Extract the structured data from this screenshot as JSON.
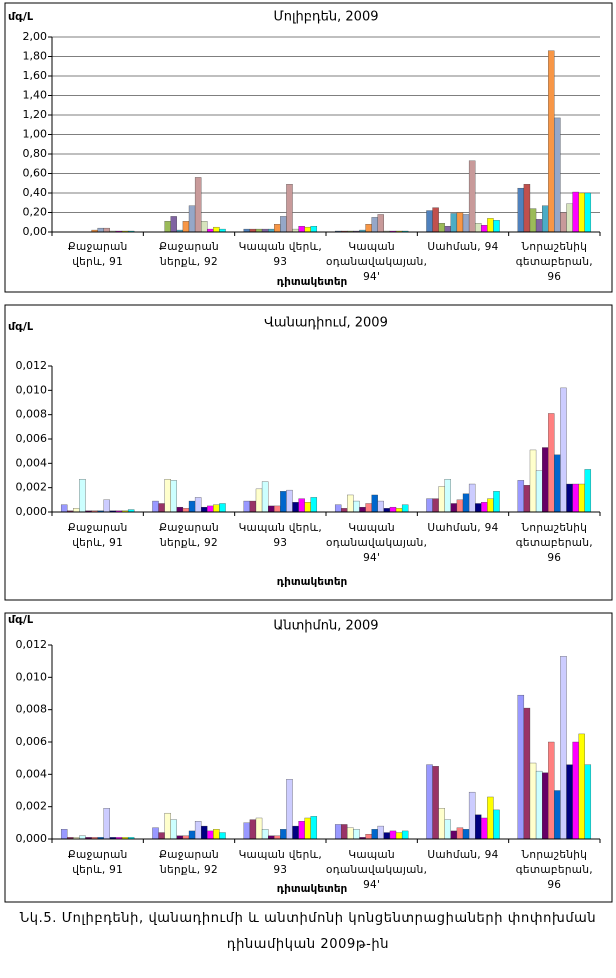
{
  "chart_data": [
    {
      "type": "bar",
      "title": "Մոլիբդեն, 2009",
      "y_label": "մգ/Լ",
      "x_label": "դիտակետեր",
      "categories": [
        "Քաջարան վերև, 91",
        "Քաջարան ներքև, 92",
        "Կապան վերև, 93",
        "Կապան օդանավակայան, 94'",
        "Սահման, 94",
        "Նորաշենիկ գետաբերան, 96"
      ],
      "ylim": [
        0,
        2
      ],
      "yticks": [
        {
          "value": 0,
          "label": "0,00"
        },
        {
          "value": 0.2,
          "label": "0,20"
        },
        {
          "value": 0.4,
          "label": "0,40"
        },
        {
          "value": 0.6,
          "label": "0,60"
        },
        {
          "value": 0.8,
          "label": "0,80"
        },
        {
          "value": 1,
          "label": "1,00"
        },
        {
          "value": 1.2,
          "label": "1,20"
        },
        {
          "value": 1.4,
          "label": "1,40"
        },
        {
          "value": 1.6,
          "label": "1,60"
        },
        {
          "value": 1.8,
          "label": "1,80"
        },
        {
          "value": 2,
          "label": "2,00"
        }
      ],
      "grid": true,
      "series": [
        {
          "color": "#4f81bd",
          "values": [
            0,
            0,
            0.03,
            0.01,
            0.22,
            0.45
          ]
        },
        {
          "color": "#c0504d",
          "values": [
            0,
            0,
            0.03,
            0.01,
            0.25,
            0.49
          ]
        },
        {
          "color": "#9bbb59",
          "values": [
            0,
            0.11,
            0.03,
            0.01,
            0.09,
            0.24
          ]
        },
        {
          "color": "#8064a2",
          "values": [
            0,
            0.16,
            0.03,
            0.01,
            0.06,
            0.13
          ]
        },
        {
          "color": "#4bacc6",
          "values": [
            0,
            0.02,
            0.03,
            0.02,
            0.19,
            0.27
          ]
        },
        {
          "color": "#f79646",
          "values": [
            0.02,
            0.11,
            0.08,
            0.08,
            0.2,
            1.86
          ]
        },
        {
          "color": "#95a7c8",
          "values": [
            0.04,
            0.27,
            0.16,
            0.15,
            0.18,
            1.17
          ]
        },
        {
          "color": "#c89a9a",
          "values": [
            0.04,
            0.56,
            0.49,
            0.18,
            0.73,
            0.2
          ]
        },
        {
          "color": "#d7e4bd",
          "values": [
            0.01,
            0.11,
            0.03,
            0.01,
            0.09,
            0.29
          ]
        },
        {
          "color": "#ff00ff",
          "values": [
            0.01,
            0.03,
            0.06,
            0.01,
            0.07,
            0.41
          ]
        },
        {
          "color": "#ffff00",
          "values": [
            0.01,
            0.05,
            0.05,
            0.01,
            0.14,
            0.4
          ]
        },
        {
          "color": "#00ffff",
          "values": [
            0.01,
            0.03,
            0.06,
            0.01,
            0.12,
            0.4
          ]
        }
      ]
    },
    {
      "type": "bar",
      "title": "Վանադիում, 2009",
      "y_label": "մգ/Լ",
      "x_label": "դիտակետեր",
      "categories": [
        "Քաջարան վերև, 91",
        "Քաջարան ներքև, 92",
        "Կապան վերև, 93",
        "Կապան օդանավակայան, 94'",
        "Սահման, 94",
        "Նորաշենիկ գետաբերան, 96"
      ],
      "ylim": [
        0,
        0.012
      ],
      "yticks": [
        {
          "value": 0,
          "label": "0,000"
        },
        {
          "value": 0.002,
          "label": "0,002"
        },
        {
          "value": 0.004,
          "label": "0,004"
        },
        {
          "value": 0.006,
          "label": "0,006"
        },
        {
          "value": 0.008,
          "label": "0,008"
        },
        {
          "value": 0.01,
          "label": "0,010"
        },
        {
          "value": 0.012,
          "label": "0,012"
        }
      ],
      "grid": false,
      "series": [
        {
          "color": "#9999ff",
          "values": [
            0.0006,
            0.0009,
            0.0009,
            0.0006,
            0.0011,
            0.0026
          ]
        },
        {
          "color": "#993366",
          "values": [
            0.0001,
            0.0007,
            0.0009,
            0.0003,
            0.0011,
            0.0022
          ]
        },
        {
          "color": "#ffffcc",
          "values": [
            0.0003,
            0.0027,
            0.0019,
            0.0014,
            0.0021,
            0.0051
          ]
        },
        {
          "color": "#ccffff",
          "values": [
            0.0027,
            0.0026,
            0.0025,
            0.0009,
            0.0027,
            0.0034
          ]
        },
        {
          "color": "#660066",
          "values": [
            0.0001,
            0.0004,
            0.0005,
            0.0004,
            0.0007,
            0.0053
          ]
        },
        {
          "color": "#ff8080",
          "values": [
            0.0001,
            0.0003,
            0.0005,
            0.0007,
            0.001,
            0.0081
          ]
        },
        {
          "color": "#0066cc",
          "values": [
            0.0001,
            0.0009,
            0.0017,
            0.0014,
            0.0015,
            0.0047
          ]
        },
        {
          "color": "#ccccff",
          "values": [
            0.001,
            0.0012,
            0.0018,
            0.0009,
            0.0023,
            0.0102
          ]
        },
        {
          "color": "#000080",
          "values": [
            0.0001,
            0.0004,
            0.0008,
            0.0003,
            0.0007,
            0.0023
          ]
        },
        {
          "color": "#ff00ff",
          "values": [
            0.0001,
            0.0005,
            0.0011,
            0.0004,
            0.0008,
            0.0023
          ]
        },
        {
          "color": "#ffff00",
          "values": [
            0.0001,
            0.0006,
            0.0008,
            0.0003,
            0.0011,
            0.0023
          ]
        },
        {
          "color": "#00ffff",
          "values": [
            0.0002,
            0.0007,
            0.0012,
            0.0006,
            0.0017,
            0.0035
          ]
        }
      ]
    },
    {
      "type": "bar",
      "title": "Անտիմոն, 2009",
      "y_label": "մգ/Լ",
      "x_label": "դիտակետեր",
      "categories": [
        "Քաջարան վերև, 91",
        "Քաջարան ներքև, 92",
        "Կապան վերև, 93",
        "Կապան օդանավակայան, 94'",
        "Սահման, 94",
        "Նորաշենիկ գետաբերան, 96"
      ],
      "ylim": [
        0,
        0.012
      ],
      "yticks": [
        {
          "value": 0,
          "label": "0,000"
        },
        {
          "value": 0.002,
          "label": "0,002"
        },
        {
          "value": 0.004,
          "label": "0,004"
        },
        {
          "value": 0.006,
          "label": "0,006"
        },
        {
          "value": 0.008,
          "label": "0,008"
        },
        {
          "value": 0.01,
          "label": "0,010"
        },
        {
          "value": 0.012,
          "label": "0,012"
        }
      ],
      "grid": false,
      "series": [
        {
          "color": "#9999ff",
          "values": [
            0.0006,
            0.0007,
            0.001,
            0.0009,
            0.0046,
            0.0089
          ]
        },
        {
          "color": "#993366",
          "values": [
            0.0001,
            0.0004,
            0.0012,
            0.0009,
            0.0045,
            0.0081
          ]
        },
        {
          "color": "#ffffcc",
          "values": [
            0.0001,
            0.0016,
            0.0013,
            0.0007,
            0.0019,
            0.0047
          ]
        },
        {
          "color": "#ccffff",
          "values": [
            0.0002,
            0.0012,
            0.0006,
            0.0006,
            0.0012,
            0.0042
          ]
        },
        {
          "color": "#660066",
          "values": [
            0.0001,
            0.0002,
            0.0002,
            0.0001,
            0.0005,
            0.0041
          ]
        },
        {
          "color": "#ff8080",
          "values": [
            0.0001,
            0.0002,
            0.0002,
            0.0003,
            0.0007,
            0.006
          ]
        },
        {
          "color": "#0066cc",
          "values": [
            0.0001,
            0.0005,
            0.0006,
            0.0006,
            0.0006,
            0.003
          ]
        },
        {
          "color": "#ccccff",
          "values": [
            0.0019,
            0.0011,
            0.0037,
            0.0008,
            0.0029,
            0.0113
          ]
        },
        {
          "color": "#000080",
          "values": [
            0.0001,
            0.0008,
            0.0008,
            0.0004,
            0.0015,
            0.0046
          ]
        },
        {
          "color": "#ff00ff",
          "values": [
            0.0001,
            0.0005,
            0.0011,
            0.0005,
            0.0013,
            0.006
          ]
        },
        {
          "color": "#ffff00",
          "values": [
            0.0001,
            0.0006,
            0.0013,
            0.0004,
            0.0026,
            0.0065
          ]
        },
        {
          "color": "#00ffff",
          "values": [
            0.0001,
            0.0004,
            0.0014,
            0.0005,
            0.0018,
            0.0046
          ]
        }
      ]
    }
  ],
  "caption": [
    "Նկ.5. Մոլիբդենի, վանադիումի և անտիմոնի կոնցենտրացիաների փոփոխման",
    "դինամիկան 2009թ-ին"
  ]
}
